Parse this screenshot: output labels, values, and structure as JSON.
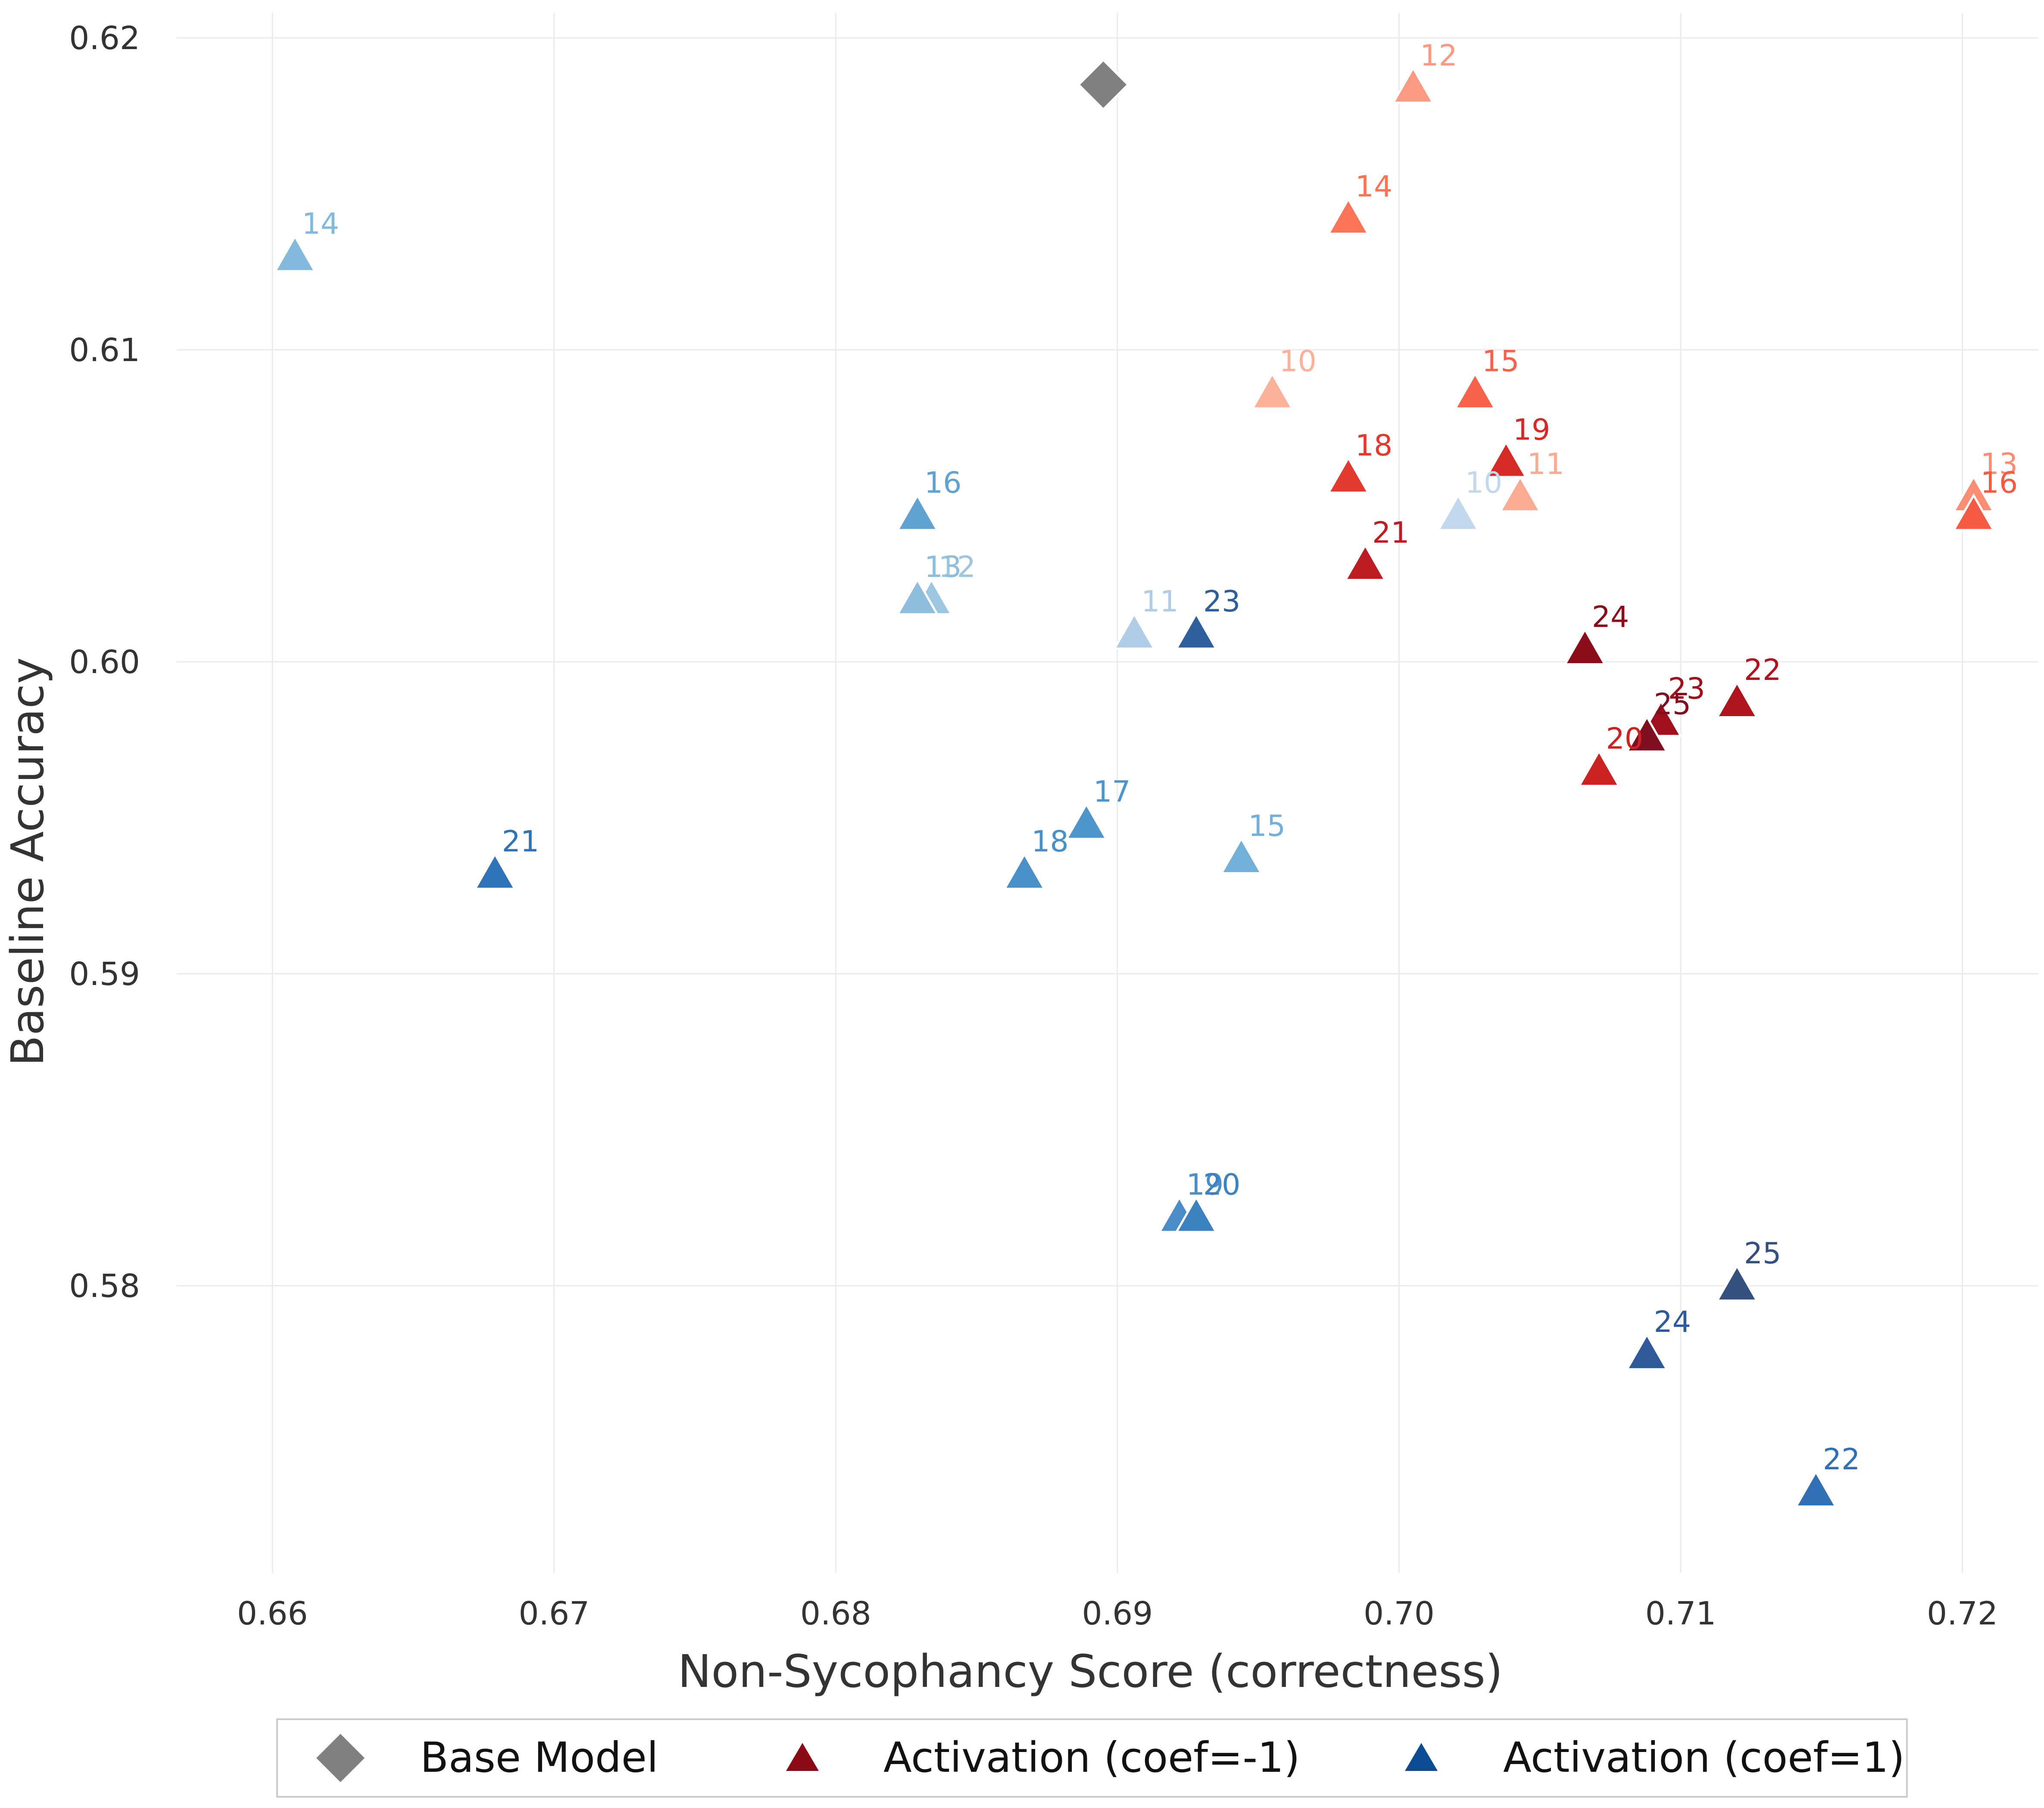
{
  "chart_data": {
    "type": "scatter",
    "title": "",
    "xlabel": "Non-Sycophancy Score (correctness)",
    "ylabel": "Baseline Accuracy",
    "xlim": [
      0.6566,
      0.7227
    ],
    "ylim": [
      0.5708,
      0.6208
    ],
    "xticks": [
      "0.66",
      "0.67",
      "0.68",
      "0.69",
      "0.70",
      "0.71",
      "0.72"
    ],
    "yticks": [
      "0.58",
      "0.59",
      "0.60",
      "0.61",
      "0.62"
    ],
    "grid": true,
    "legend": {
      "position": "bottom",
      "entries": [
        "Base Model",
        "Activation (coef=-1)",
        "Activation (coef=1)"
      ]
    },
    "series": [
      {
        "name": "Base Model",
        "marker": "diamond",
        "color": "#808080",
        "points": [
          {
            "label": "",
            "x": 0.6895,
            "y": 0.6185
          }
        ]
      },
      {
        "name": "Activation (coef=-1)",
        "marker": "triangle",
        "color": "#8b0a15",
        "points": [
          {
            "label": "10",
            "x": 0.6955,
            "y": 0.6086,
            "color": "#fbb19a"
          },
          {
            "label": "11",
            "x": 0.7043,
            "y": 0.6053,
            "color": "#fbab91"
          },
          {
            "label": "12",
            "x": 0.7005,
            "y": 0.6184,
            "color": "#fb9a82"
          },
          {
            "label": "13",
            "x": 0.7204,
            "y": 0.6053,
            "color": "#fc8d73"
          },
          {
            "label": "14",
            "x": 0.6982,
            "y": 0.6142,
            "color": "#fb7457"
          },
          {
            "label": "15",
            "x": 0.7027,
            "y": 0.6086,
            "color": "#f7624a"
          },
          {
            "label": "16",
            "x": 0.7204,
            "y": 0.6047,
            "color": "#f65a42"
          },
          {
            "label": "18",
            "x": 0.6982,
            "y": 0.6059,
            "color": "#e33a2f"
          },
          {
            "label": "19",
            "x": 0.7038,
            "y": 0.6064,
            "color": "#d52a25"
          },
          {
            "label": "20",
            "x": 0.7071,
            "y": 0.5965,
            "color": "#cc2222"
          },
          {
            "label": "21",
            "x": 0.6988,
            "y": 0.6031,
            "color": "#bd1d22"
          },
          {
            "label": "22",
            "x": 0.712,
            "y": 0.5987,
            "color": "#b0141e"
          },
          {
            "label": "23",
            "x": 0.7093,
            "y": 0.5981,
            "color": "#a0101c"
          },
          {
            "label": "24",
            "x": 0.7066,
            "y": 0.6004,
            "color": "#8b0d1a"
          },
          {
            "label": "25",
            "x": 0.7088,
            "y": 0.5976,
            "color": "#7f0f20"
          }
        ]
      },
      {
        "name": "Activation (coef=1)",
        "marker": "triangle",
        "color": "#0b4c95",
        "points": [
          {
            "label": "10",
            "x": 0.7021,
            "y": 0.6047,
            "color": "#c2d8ec"
          },
          {
            "label": "11",
            "x": 0.6906,
            "y": 0.6009,
            "color": "#afcde6"
          },
          {
            "label": "12",
            "x": 0.6834,
            "y": 0.602,
            "color": "#9dc6e0"
          },
          {
            "label": "13",
            "x": 0.6829,
            "y": 0.602,
            "color": "#8fbedd"
          },
          {
            "label": "14",
            "x": 0.6608,
            "y": 0.613,
            "color": "#83b9dc"
          },
          {
            "label": "15",
            "x": 0.6944,
            "y": 0.5937,
            "color": "#73b0d9"
          },
          {
            "label": "16",
            "x": 0.6829,
            "y": 0.6047,
            "color": "#60a2d0"
          },
          {
            "label": "17",
            "x": 0.6889,
            "y": 0.5948,
            "color": "#4e95cb"
          },
          {
            "label": "18",
            "x": 0.6867,
            "y": 0.5932,
            "color": "#4a90c8"
          },
          {
            "label": "19",
            "x": 0.6922,
            "y": 0.5822,
            "color": "#4a8dc7"
          },
          {
            "label": "20",
            "x": 0.6928,
            "y": 0.5822,
            "color": "#3d82c0"
          },
          {
            "label": "21",
            "x": 0.6679,
            "y": 0.5932,
            "color": "#2f73b8"
          },
          {
            "label": "22",
            "x": 0.7148,
            "y": 0.5734,
            "color": "#3170b4"
          },
          {
            "label": "23",
            "x": 0.6928,
            "y": 0.6009,
            "color": "#2e5f9d"
          },
          {
            "label": "24",
            "x": 0.7088,
            "y": 0.5778,
            "color": "#30599a"
          },
          {
            "label": "25",
            "x": 0.712,
            "y": 0.58,
            "color": "#33507f"
          }
        ]
      }
    ]
  }
}
